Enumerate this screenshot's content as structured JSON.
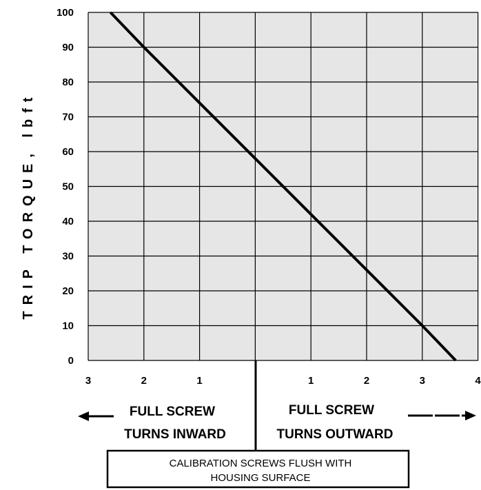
{
  "chart_data": {
    "type": "line",
    "ylabel": "TRIP TORQUE, lbft",
    "xlabel": "",
    "ylim": [
      0,
      100
    ],
    "y_ticks": [
      "0",
      "10",
      "20",
      "30",
      "40",
      "50",
      "60",
      "70",
      "80",
      "90",
      "100"
    ],
    "x_ticks": [
      "3",
      "2",
      "1",
      "1",
      "2",
      "3",
      "4"
    ],
    "x_range_turns": [
      -3,
      4
    ],
    "grid": true,
    "series": [
      {
        "x": [
          -2.6,
          -2.0,
          -1.0,
          0.0,
          1.0,
          2.0,
          3.0,
          3.6
        ],
        "y": [
          100,
          90,
          74,
          58,
          42,
          26,
          10,
          0
        ]
      }
    ]
  },
  "annotations": {
    "inward_line1": "FULL SCREW",
    "inward_line2": "TURNS INWARD",
    "outward_line1": "FULL SCREW",
    "outward_line2": "TURNS OUTWARD",
    "callout_line1": "CALIBRATION SCREWS FLUSH WITH",
    "callout_line2": "HOUSING SURFACE"
  },
  "colors": {
    "plot_background": "#e6e6e6",
    "grid": "#000000",
    "line": "#000000"
  }
}
